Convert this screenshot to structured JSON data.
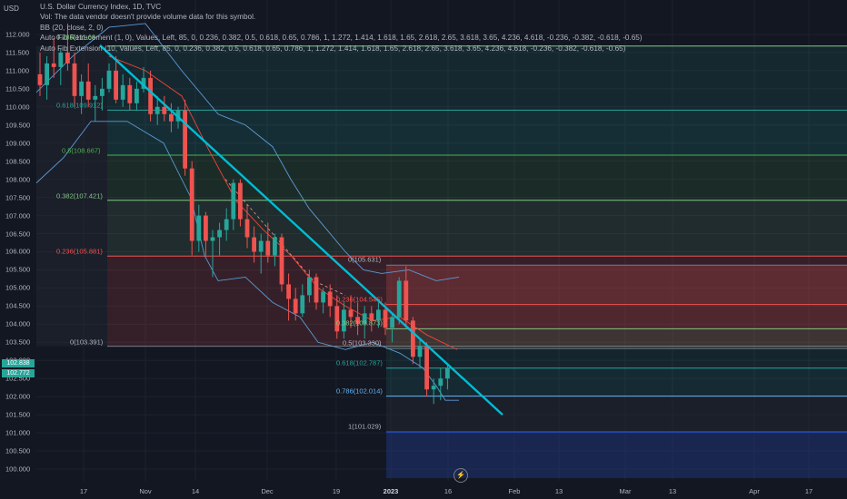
{
  "axis_label": "USD",
  "legend": {
    "title": "U.S. Dollar Currency Index, 1D, TVC",
    "vol": "Vol: The data vendor doesn't provide volume data for this symbol.",
    "bb": "BB (20, close, 2, 0)",
    "fib_retracement": "Auto Fib Retracement (1, 0), Values, Left, 85, 0, 0.236, 0.382, 0.5, 0.618, 0.65, 0.786, 1, 1.272, 1.414, 1.618, 1.65, 2.618, 2.65, 3.618, 3.65, 4.236, 4.618, -0.236, -0.382, -0.618, -0.65)",
    "fib_extension": "Auto Fib Extension (10, Values, Left, 85, 0, 0.236, 0.382, 0.5, 0.618, 0.65, 0.786, 1, 1.272, 1.414, 1.618, 1.65, 2.618, 2.65, 3.618, 3.65, 4.236, 4.618, -0.236, -0.382, -0.618, -0.65)",
    "overlap_value": "0.786(111.68"
  },
  "colors": {
    "background": "#131722",
    "trendline": "#00bcd4",
    "up": "#26a69a",
    "down": "#ef5350",
    "bb_band": "#5b9bd5",
    "ma_red": "#f44336"
  },
  "y_ticks": [
    "112.000",
    "111.500",
    "111.000",
    "110.500",
    "110.000",
    "109.500",
    "109.000",
    "108.500",
    "108.000",
    "107.500",
    "107.000",
    "106.500",
    "106.000",
    "105.500",
    "105.000",
    "104.500",
    "104.000",
    "103.500",
    "103.000",
    "102.500",
    "102.000",
    "101.500",
    "101.000",
    "100.500",
    "100.000"
  ],
  "x_ticks": [
    "17",
    "Nov",
    "14",
    "Dec",
    "19",
    "2023",
    "16",
    "Feb",
    "13",
    "Mar",
    "13",
    "Apr",
    "17"
  ],
  "price_badges": [
    {
      "text": "102.838",
      "color": "#26a69a"
    },
    {
      "text": "102.772",
      "color": "#26a69a"
    }
  ],
  "retracement_labels": [
    {
      "text": "0.618(109.912)",
      "value": 109.912,
      "color": "#26a69a"
    },
    {
      "text": "0.5(108.667)",
      "value": 108.667,
      "color": "#4caf50"
    },
    {
      "text": "0.382(107.421)",
      "value": 107.421,
      "color": "#81c784"
    },
    {
      "text": "0.236(105.881)",
      "value": 105.881,
      "color": "#ef5350"
    },
    {
      "text": "0(103.391)",
      "value": 103.391,
      "color": "#b2b5be"
    }
  ],
  "extension_labels": [
    {
      "text": "0(105.631)",
      "value": 105.631,
      "color": "#b2b5be"
    },
    {
      "text": "0.236(104.545)",
      "value": 104.545,
      "color": "#ef5350"
    },
    {
      "text": "0.382(103.873)",
      "value": 103.873,
      "color": "#81c784"
    },
    {
      "text": "0.5(103.330)",
      "value": 103.33,
      "color": "#b2b5be"
    },
    {
      "text": "0.618(102.787)",
      "value": 102.787,
      "color": "#26a69a"
    },
    {
      "text": "0.786(102.014)",
      "value": 102.014,
      "color": "#64b5f6"
    },
    {
      "text": "1(101.029)",
      "value": 101.029,
      "color": "#b2b5be"
    }
  ],
  "chart_data": {
    "type": "candlestick",
    "title": "U.S. Dollar Currency Index, 1D, TVC",
    "ylabel": "USD",
    "ylim": [
      99.75,
      112.5
    ],
    "x_tick_labels": [
      "17",
      "Nov",
      "14",
      "Dec",
      "19",
      "2023",
      "16",
      "Feb",
      "13",
      "Mar",
      "13",
      "Apr",
      "17"
    ],
    "candles": [
      [
        110.9,
        111.5,
        110.3,
        110.6
      ],
      [
        110.6,
        111.4,
        110.2,
        111.2
      ],
      [
        111.2,
        111.9,
        110.8,
        111.1
      ],
      [
        111.1,
        111.6,
        110.6,
        111.5
      ],
      [
        111.5,
        112.3,
        111.0,
        111.2
      ],
      [
        111.2,
        111.5,
        110.0,
        110.3
      ],
      [
        110.3,
        110.9,
        109.8,
        110.7
      ],
      [
        110.7,
        111.2,
        110.0,
        110.2
      ],
      [
        110.2,
        110.6,
        109.6,
        110.3
      ],
      [
        110.3,
        110.8,
        109.9,
        110.5
      ],
      [
        110.5,
        111.2,
        110.4,
        111.0
      ],
      [
        111.0,
        111.4,
        110.1,
        110.2
      ],
      [
        110.2,
        110.9,
        110.0,
        110.6
      ],
      [
        110.6,
        110.8,
        109.9,
        110.1
      ],
      [
        110.1,
        110.7,
        109.9,
        110.5
      ],
      [
        110.5,
        111.1,
        110.4,
        110.8
      ],
      [
        110.8,
        111.0,
        109.6,
        109.8
      ],
      [
        109.8,
        110.3,
        109.5,
        110.0
      ],
      [
        110.0,
        110.3,
        109.6,
        109.8
      ],
      [
        109.8,
        110.1,
        109.3,
        109.6
      ],
      [
        109.6,
        110.0,
        109.4,
        109.9
      ],
      [
        109.9,
        110.2,
        108.1,
        108.3
      ],
      [
        108.3,
        108.5,
        105.9,
        106.3
      ],
      [
        106.3,
        107.3,
        106.0,
        107.0
      ],
      [
        107.0,
        107.1,
        105.9,
        106.3
      ],
      [
        106.3,
        106.6,
        105.3,
        106.4
      ],
      [
        106.4,
        106.8,
        105.9,
        106.6
      ],
      [
        106.6,
        107.2,
        106.3,
        106.9
      ],
      [
        106.9,
        108.0,
        106.6,
        107.9
      ],
      [
        107.9,
        108.0,
        106.7,
        106.9
      ],
      [
        106.9,
        107.3,
        106.1,
        106.4
      ],
      [
        106.4,
        106.7,
        105.7,
        106.0
      ],
      [
        106.0,
        106.5,
        105.4,
        106.3
      ],
      [
        106.3,
        106.8,
        105.7,
        105.9
      ],
      [
        105.9,
        106.5,
        105.6,
        106.4
      ],
      [
        106.4,
        106.5,
        104.9,
        105.1
      ],
      [
        105.1,
        105.4,
        104.1,
        104.7
      ],
      [
        104.7,
        105.0,
        104.1,
        104.3
      ],
      [
        104.3,
        105.1,
        104.2,
        104.8
      ],
      [
        104.8,
        105.5,
        104.6,
        105.3
      ],
      [
        105.3,
        105.4,
        104.4,
        104.6
      ],
      [
        104.6,
        105.0,
        104.3,
        104.9
      ],
      [
        104.9,
        105.1,
        104.2,
        104.5
      ],
      [
        104.5,
        104.8,
        103.6,
        103.8
      ],
      [
        103.8,
        104.6,
        103.6,
        104.4
      ],
      [
        104.4,
        104.8,
        103.9,
        104.2
      ],
      [
        104.2,
        104.6,
        103.7,
        104.0
      ],
      [
        104.0,
        104.5,
        103.6,
        104.3
      ],
      [
        104.3,
        104.5,
        103.8,
        104.1
      ],
      [
        104.1,
        104.6,
        103.9,
        104.4
      ],
      [
        104.4,
        104.6,
        103.7,
        103.9
      ],
      [
        103.9,
        104.3,
        103.5,
        104.2
      ],
      [
        104.2,
        105.3,
        104.0,
        105.2
      ],
      [
        105.2,
        105.6,
        103.9,
        104.1
      ],
      [
        104.1,
        104.2,
        102.9,
        103.1
      ],
      [
        103.1,
        103.6,
        102.8,
        103.4
      ],
      [
        103.4,
        103.5,
        102.0,
        102.2
      ],
      [
        102.2,
        102.5,
        101.8,
        102.3
      ],
      [
        102.3,
        102.8,
        101.9,
        102.5
      ],
      [
        102.5,
        102.9,
        102.2,
        102.8
      ]
    ],
    "trendline": {
      "from": [
        111.7
      ],
      "to": [
        101.7
      ]
    }
  }
}
